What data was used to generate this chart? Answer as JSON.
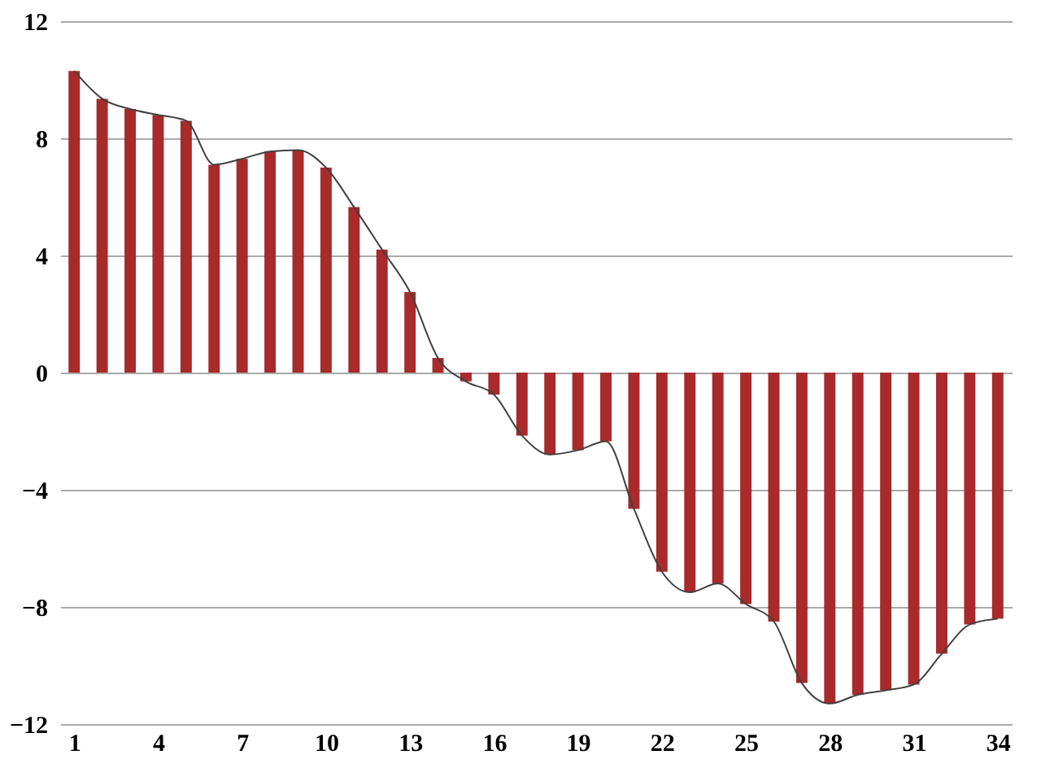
{
  "chart_data": {
    "type": "bar",
    "categories": [
      "1",
      null,
      null,
      "4",
      null,
      null,
      "7",
      null,
      null,
      "10",
      null,
      null,
      "13",
      null,
      null,
      "16",
      null,
      null,
      "19",
      null,
      null,
      "22",
      null,
      null,
      "25",
      null,
      null,
      "28",
      null,
      null,
      "31",
      null,
      null,
      "34"
    ],
    "series": [
      {
        "color": "#a82a2a",
        "values": [
          10.3,
          9.35,
          9.0,
          8.8,
          8.6,
          7.1,
          7.3,
          7.55,
          7.6,
          7.0,
          5.65,
          4.2,
          2.75,
          0.5,
          -0.3,
          -0.75,
          -2.15,
          -2.8,
          -2.65,
          -2.35,
          -4.65,
          -6.8,
          -7.5,
          -7.2,
          -7.9,
          -8.5,
          -10.6,
          -11.3,
          -11.0,
          -10.85,
          -10.65,
          -9.6,
          -8.6,
          -8.4
        ]
      },
      {
        "type": "line",
        "color": "#404040",
        "values": [
          10.3,
          9.35,
          9.0,
          8.8,
          8.6,
          7.1,
          7.3,
          7.55,
          7.6,
          7.0,
          5.65,
          4.2,
          2.75,
          0.5,
          -0.3,
          -0.75,
          -2.15,
          -2.8,
          -2.65,
          -2.35,
          -4.65,
          -6.8,
          -7.5,
          -7.2,
          -7.9,
          -8.5,
          -10.6,
          -11.3,
          -11.0,
          -10.85,
          -10.65,
          -9.6,
          -8.6,
          -8.4
        ]
      }
    ],
    "ylim": [
      -12,
      12
    ],
    "yticks": [
      -12,
      -8,
      -4,
      0,
      4,
      8,
      12
    ],
    "grid": "y"
  }
}
